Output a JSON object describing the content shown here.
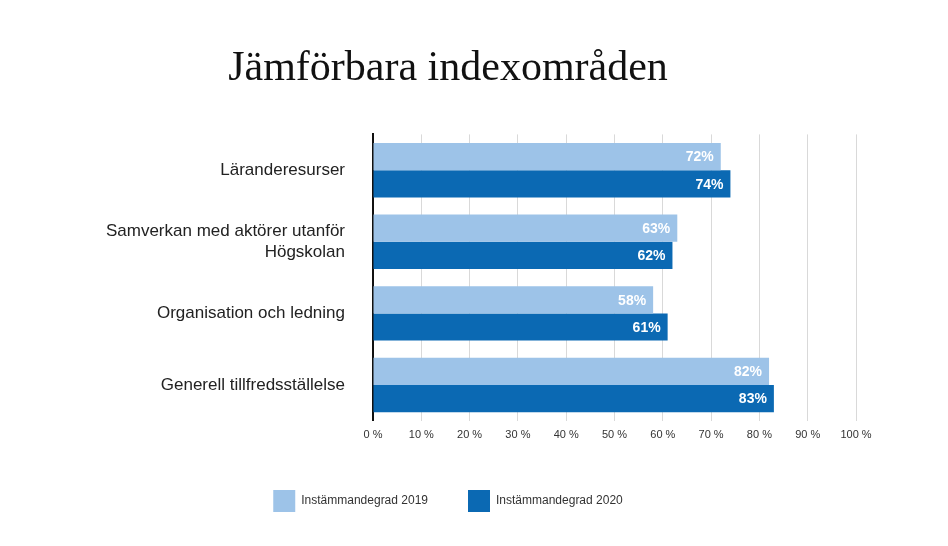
{
  "chart_data": {
    "type": "bar",
    "orientation": "horizontal",
    "title": "Jämförbara indexområden",
    "categories": [
      "Läranderesurser",
      "Samverkan med aktörer utanför Högskolan",
      "Organisation och ledning",
      "Generell tillfredsställelse"
    ],
    "series": [
      {
        "name": "Instämmandegrad 2019",
        "color": "#9dc3e8",
        "values": [
          72,
          63,
          58,
          82
        ],
        "value_labels": [
          "72%",
          "63%",
          "58%",
          "82%"
        ]
      },
      {
        "name": "Instämmandegrad 2020",
        "color": "#0b69b3",
        "values": [
          74,
          62,
          61,
          83
        ],
        "value_labels": [
          "74%",
          "62%",
          "61%",
          "83%"
        ]
      }
    ],
    "xlim": [
      0,
      100
    ],
    "xticks": [
      {
        "value": 0,
        "label": "0 %"
      },
      {
        "value": 10,
        "label": "10 %"
      },
      {
        "value": 20,
        "label": "20 %"
      },
      {
        "value": 30,
        "label": "30 %"
      },
      {
        "value": 40,
        "label": "40 %"
      },
      {
        "value": 50,
        "label": "50 %"
      },
      {
        "value": 60,
        "label": "60 %"
      },
      {
        "value": 70,
        "label": "70 %"
      },
      {
        "value": 80,
        "label": "80 %"
      },
      {
        "value": 90,
        "label": "90 %"
      },
      {
        "value": 100,
        "label": "100 %"
      }
    ],
    "grid": true,
    "data_labels": true,
    "legend": "bottom"
  }
}
